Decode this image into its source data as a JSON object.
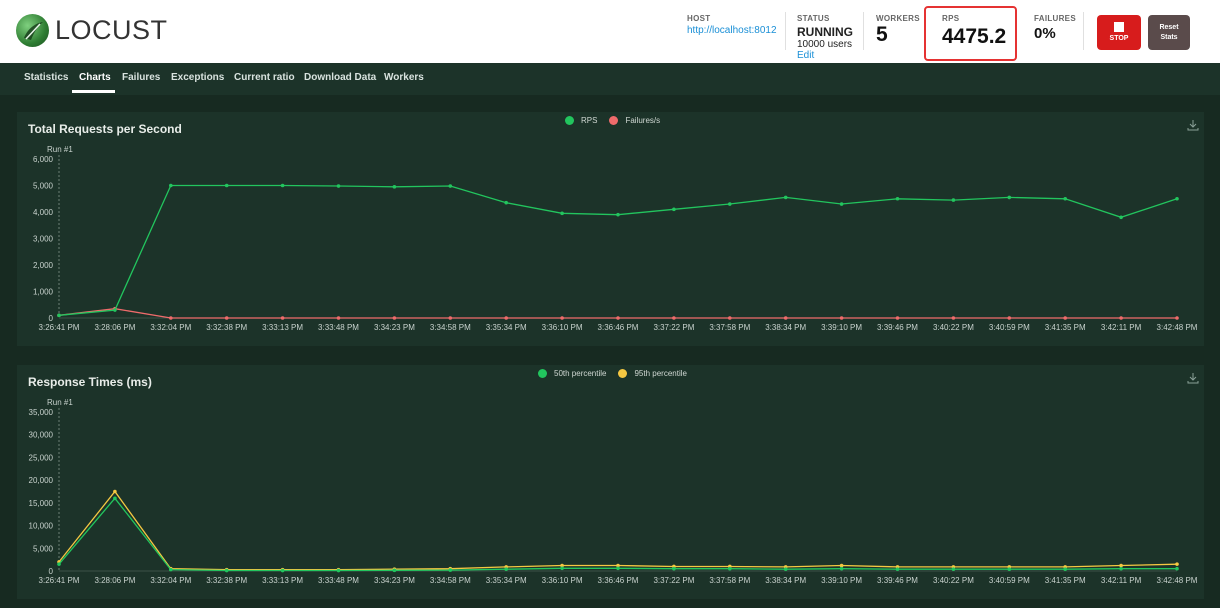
{
  "app": {
    "name": "LOCUST"
  },
  "header": {
    "host_label": "HOST",
    "host_value": "http://localhost:8012",
    "status_label": "STATUS",
    "status_value": "RUNNING",
    "users_value": "10000 users",
    "edit_label": "Edit",
    "workers_label": "WORKERS",
    "workers_value": "5",
    "rps_label": "RPS",
    "rps_value": "4475.2",
    "failures_label": "FAILURES",
    "failures_value": "0%",
    "stop_label": "STOP",
    "reset_label_1": "Reset",
    "reset_label_2": "Stats"
  },
  "nav": {
    "tabs": [
      {
        "label": "Statistics"
      },
      {
        "label": "Charts"
      },
      {
        "label": "Failures"
      },
      {
        "label": "Exceptions"
      },
      {
        "label": "Current ratio"
      },
      {
        "label": "Download Data"
      },
      {
        "label": "Workers"
      }
    ],
    "active": "Charts"
  },
  "colors": {
    "green": "#22c55e",
    "red": "#ef6b6b",
    "yellow": "#f5c842",
    "highlight": "#e53232"
  },
  "icons": {
    "download": "download-icon",
    "stop": "stop-icon"
  },
  "chart_data": [
    {
      "type": "line",
      "title": "Total Requests per Second",
      "run_label": "Run #1",
      "x": [
        "3:26:41 PM",
        "3:28:06 PM",
        "3:32:04 PM",
        "3:32:38 PM",
        "3:33:13 PM",
        "3:33:48 PM",
        "3:34:23 PM",
        "3:34:58 PM",
        "3:35:34 PM",
        "3:36:10 PM",
        "3:36:46 PM",
        "3:37:22 PM",
        "3:37:58 PM",
        "3:38:34 PM",
        "3:39:10 PM",
        "3:39:46 PM",
        "3:40:22 PM",
        "3:40:59 PM",
        "3:41:35 PM",
        "3:42:11 PM",
        "3:42:48 PM"
      ],
      "yticks": [
        "0",
        "1,000",
        "2,000",
        "3,000",
        "4,000",
        "5,000",
        "6,000"
      ],
      "ylim": [
        0,
        6000
      ],
      "series": [
        {
          "name": "RPS",
          "color": "#22c55e",
          "values": [
            100,
            300,
            5000,
            5000,
            5000,
            4980,
            4950,
            4980,
            4350,
            3950,
            3900,
            4100,
            4300,
            4550,
            4300,
            4500,
            4450,
            4550,
            4500,
            3800,
            4500
          ]
        },
        {
          "name": "Failures/s",
          "color": "#ef6b6b",
          "values": [
            100,
            350,
            0,
            0,
            0,
            0,
            0,
            0,
            0,
            0,
            0,
            0,
            0,
            0,
            0,
            0,
            0,
            0,
            0,
            0,
            0
          ]
        }
      ]
    },
    {
      "type": "line",
      "title": "Response Times (ms)",
      "run_label": "Run #1",
      "x": [
        "3:26:41 PM",
        "3:28:06 PM",
        "3:32:04 PM",
        "3:32:38 PM",
        "3:33:13 PM",
        "3:33:48 PM",
        "3:34:23 PM",
        "3:34:58 PM",
        "3:35:34 PM",
        "3:36:10 PM",
        "3:36:46 PM",
        "3:37:22 PM",
        "3:37:58 PM",
        "3:38:34 PM",
        "3:39:10 PM",
        "3:39:46 PM",
        "3:40:22 PM",
        "3:40:59 PM",
        "3:41:35 PM",
        "3:42:11 PM",
        "3:42:48 PM"
      ],
      "yticks": [
        "0",
        "5,000",
        "10,000",
        "15,000",
        "20,000",
        "25,000",
        "30,000",
        "35,000"
      ],
      "ylim": [
        0,
        35000
      ],
      "series": [
        {
          "name": "50th percentile",
          "color": "#22c55e",
          "values": [
            1500,
            16000,
            300,
            100,
            100,
            100,
            150,
            200,
            400,
            600,
            600,
            500,
            500,
            400,
            500,
            400,
            400,
            400,
            400,
            500,
            500
          ]
        },
        {
          "name": "95th percentile",
          "color": "#f5c842",
          "values": [
            2000,
            17500,
            500,
            300,
            300,
            300,
            400,
            500,
            900,
            1200,
            1200,
            1000,
            1000,
            900,
            1200,
            900,
            900,
            900,
            900,
            1200,
            1500
          ]
        }
      ]
    }
  ]
}
